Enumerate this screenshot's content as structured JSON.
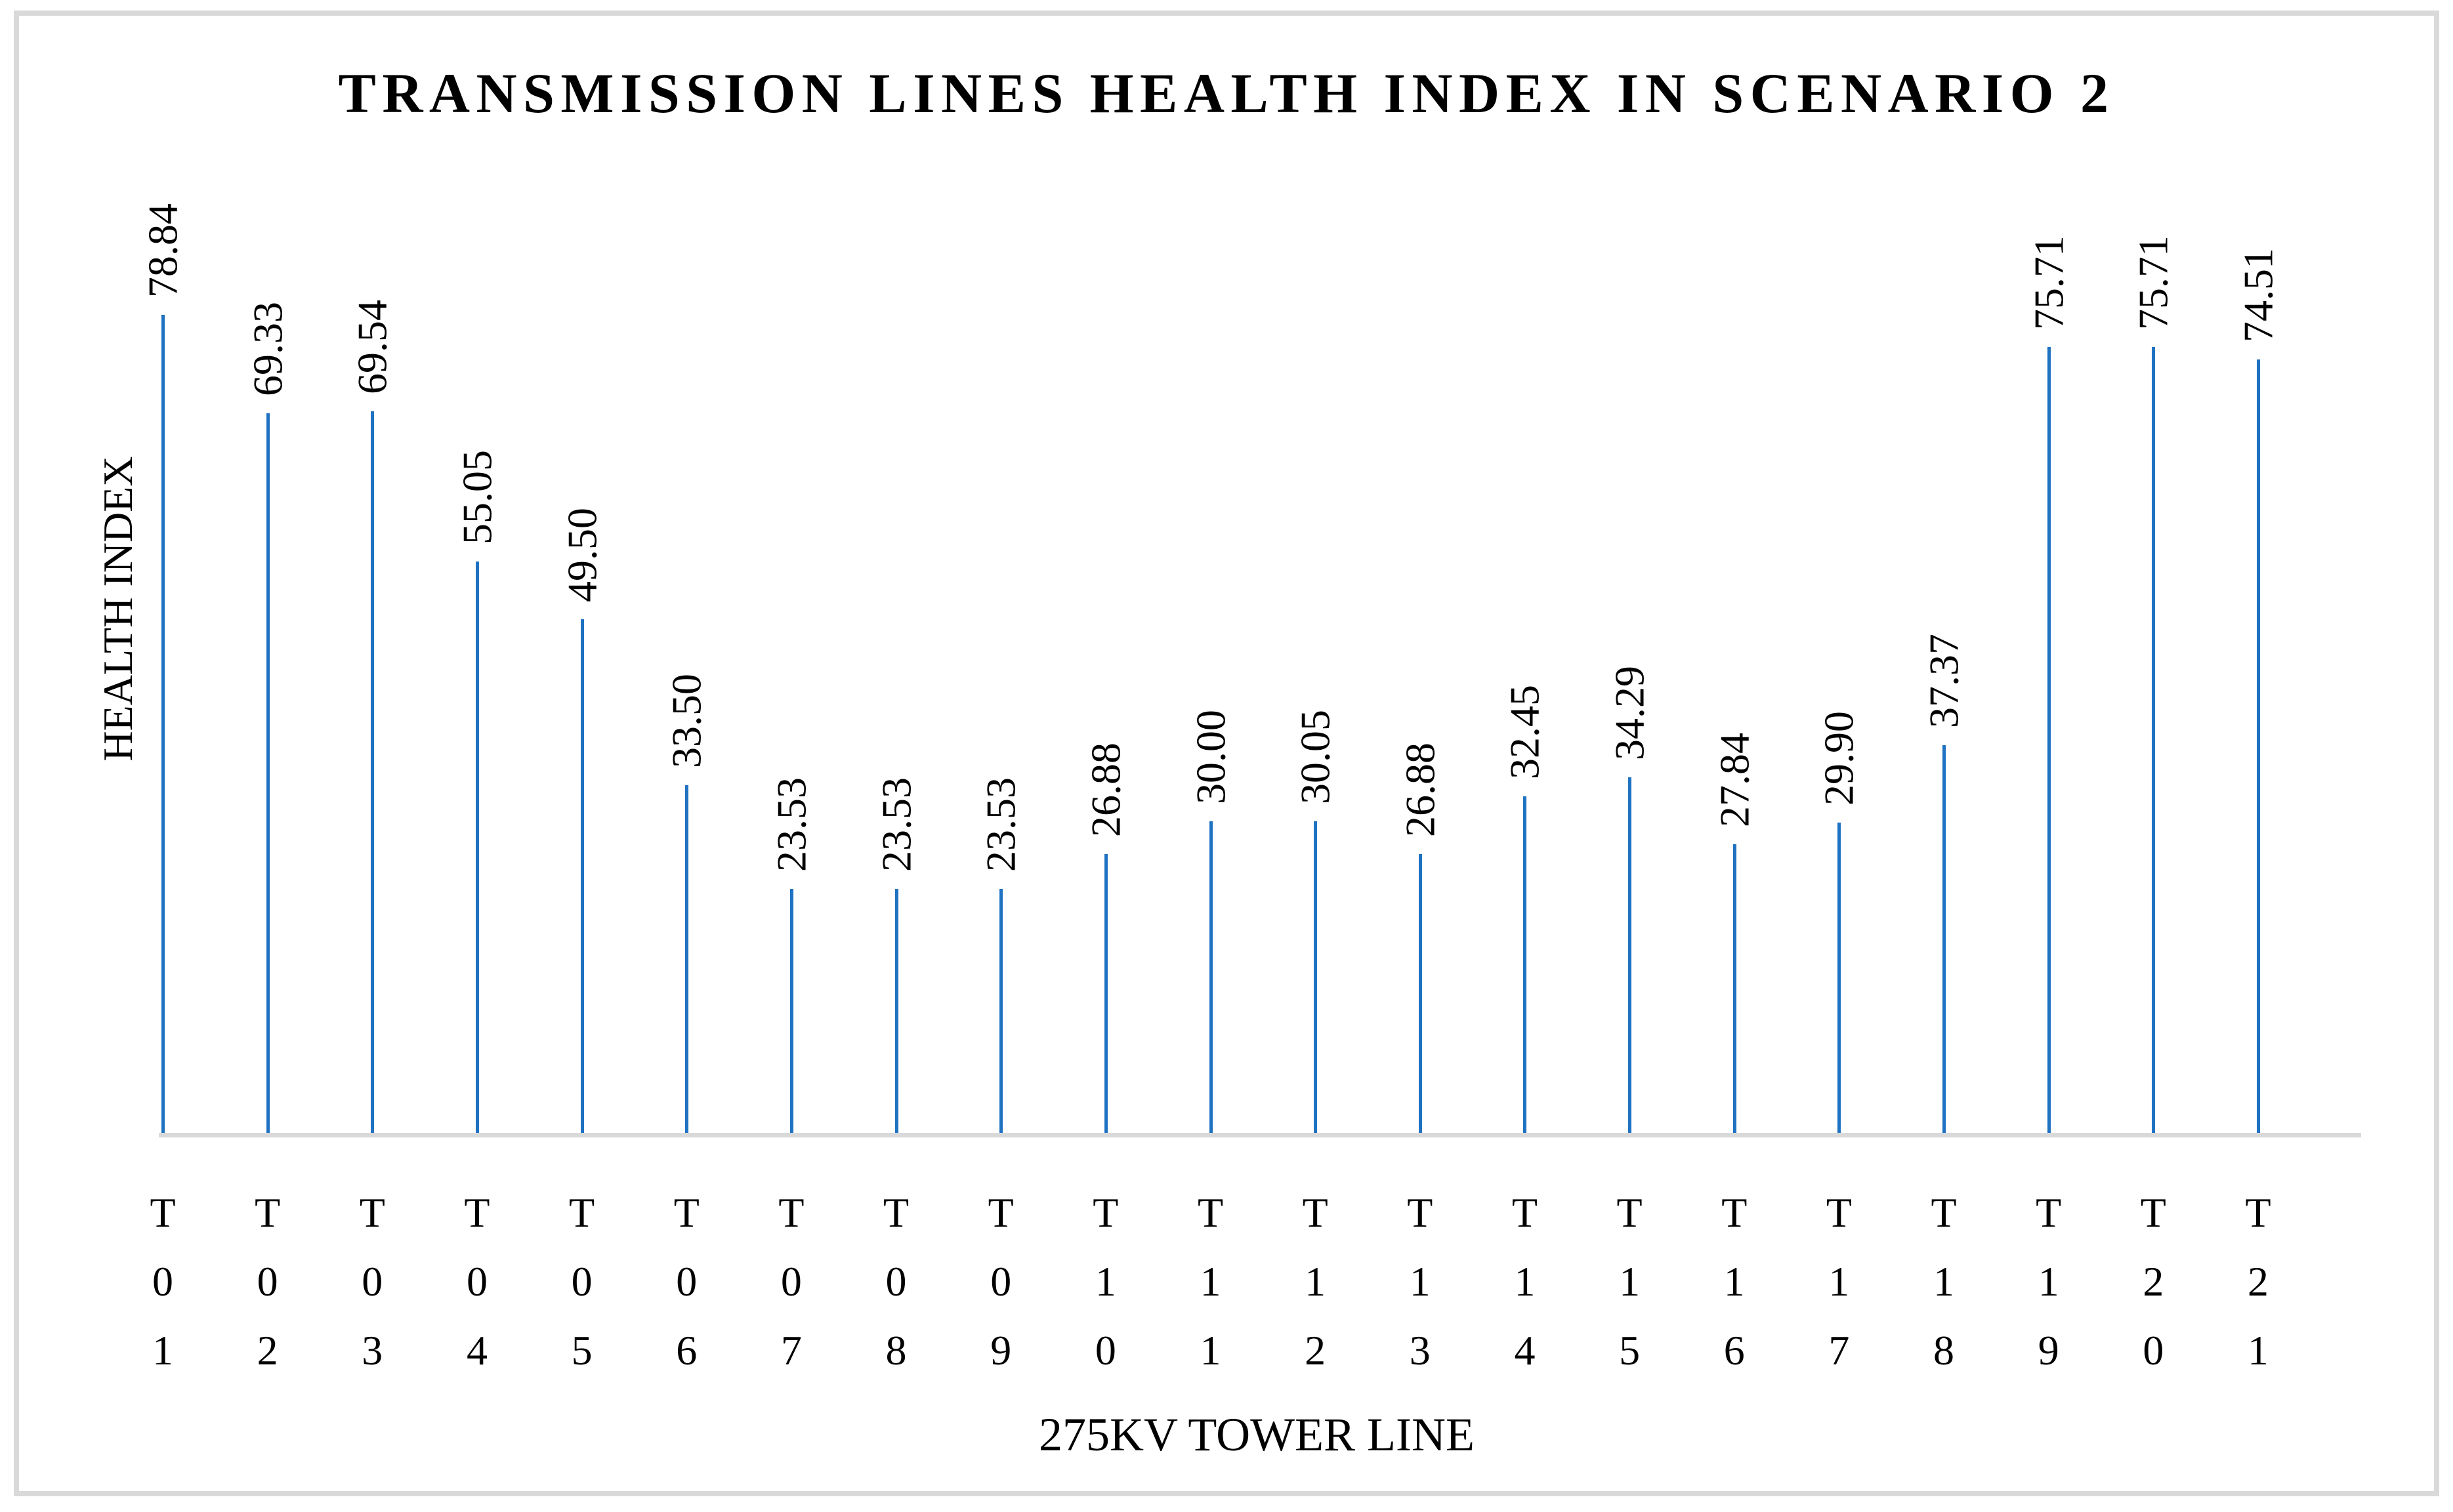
{
  "chart_data": {
    "type": "bar",
    "title": "TRANSMISSION LINES HEALTH INDEX IN SCENARIO 2",
    "xlabel": "275KV TOWER LINE",
    "ylabel": "HEALTH INDEX",
    "categories": [
      "T01",
      "T02",
      "T03",
      "T04",
      "T05",
      "T06",
      "T07",
      "T08",
      "T09",
      "T10",
      "T11",
      "T12",
      "T13",
      "T14",
      "T15",
      "T16",
      "T17",
      "T18",
      "T19",
      "T20",
      "T21"
    ],
    "values": [
      78.84,
      69.33,
      69.54,
      55.05,
      49.5,
      33.5,
      23.53,
      23.53,
      23.53,
      26.88,
      30.0,
      30.05,
      26.88,
      32.45,
      34.29,
      27.84,
      29.9,
      37.37,
      75.71,
      75.71,
      74.51
    ],
    "value_labels": [
      "78.84",
      "69.33",
      "69.54",
      "55.05",
      "49.50",
      "33.50",
      "23.53",
      "23.53",
      "23.53",
      "26.88",
      "30.00",
      "30.05",
      "26.88",
      "32.45",
      "34.29",
      "27.84",
      "29.90",
      "37.37",
      "75.71",
      "75.71",
      "74.51"
    ],
    "bar_color": "#1F72C2",
    "axis_line_color": "#D9D9D9",
    "frame_color": "#D9D9D9",
    "text_color": "#000000",
    "background_color": "#FFFFFF",
    "grid": false,
    "legend": false,
    "value_axis_labels_visible": false,
    "data_label_rotation_deg": 90,
    "category_label_orientation": "stacked-vertical"
  }
}
